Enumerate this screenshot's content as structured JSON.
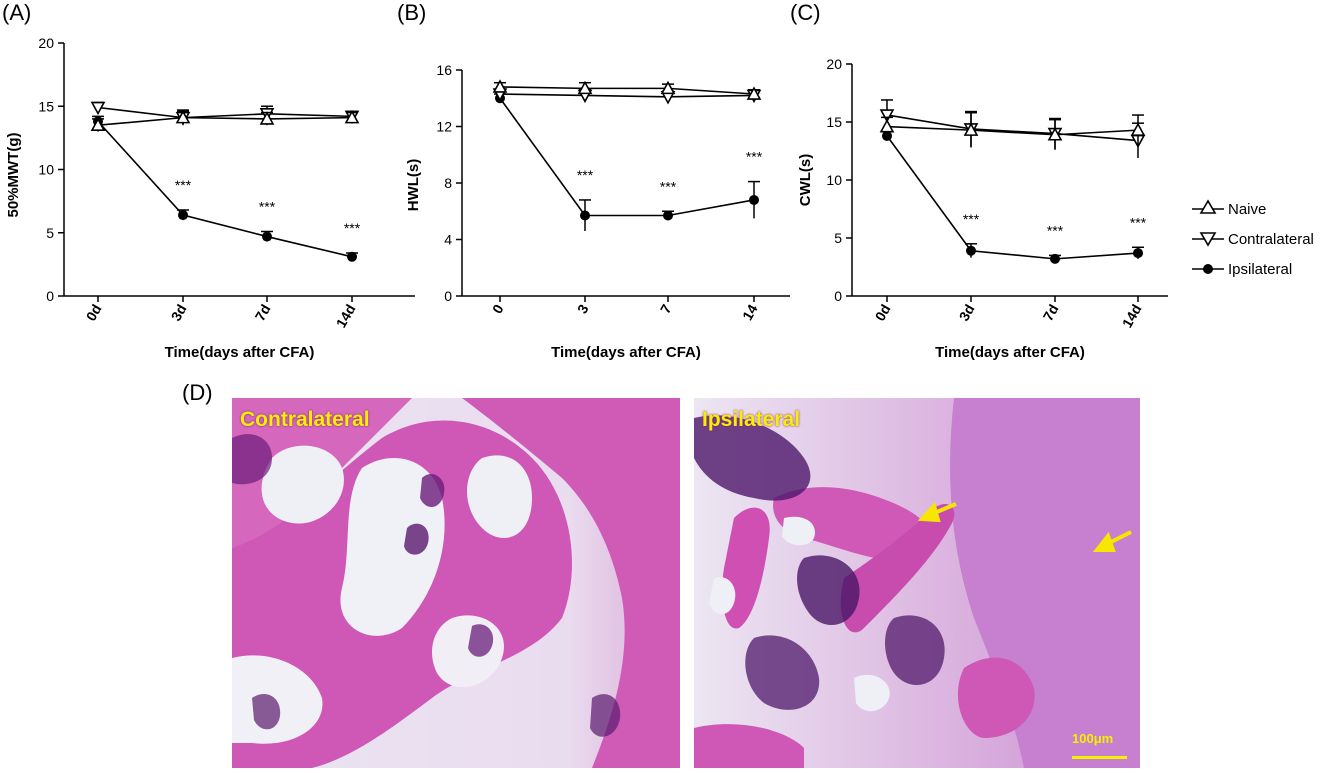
{
  "panels": {
    "a": "(A)",
    "b": "(B)",
    "c": "(C)",
    "d": "(D)"
  },
  "colors": {
    "line": "#000000",
    "tissue_pink": "#d05cb8",
    "tissue_purple": "#5a1a6e",
    "label_yellow": "#f6f000",
    "arrow_yellow": "#f6e600"
  },
  "legend": [
    {
      "label": "Naive",
      "marker": "triangle-up-open"
    },
    {
      "label": "Contralateral",
      "marker": "triangle-down-open"
    },
    {
      "label": "Ipsilateral",
      "marker": "circle-filled"
    }
  ],
  "chart_data": [
    {
      "type": "line",
      "panel": "(A)",
      "xlabel": "Time(days after CFA)",
      "ylabel": "50%MWT(g)",
      "categories": [
        "0d",
        "3d",
        "7d",
        "14d"
      ],
      "ylim": [
        0,
        20
      ],
      "yticks": [
        0,
        5,
        10,
        15,
        20
      ],
      "significance": [
        "",
        "***",
        "***",
        "***"
      ],
      "series": [
        {
          "name": "Naive",
          "values": [
            13.5,
            14.1,
            14.0,
            14.1
          ],
          "errors": [
            0.5,
            0.5,
            0.5,
            0.4
          ]
        },
        {
          "name": "Contralateral",
          "values": [
            14.9,
            14.1,
            14.4,
            14.2
          ],
          "errors": [
            0.4,
            0.6,
            0.6,
            0.4
          ]
        },
        {
          "name": "Ipsilateral",
          "values": [
            13.8,
            6.4,
            4.7,
            3.1
          ],
          "errors": [
            0.4,
            0.4,
            0.4,
            0.3
          ]
        }
      ]
    },
    {
      "type": "line",
      "panel": "(B)",
      "xlabel": "Time(days after CFA)",
      "ylabel": "HWL(s)",
      "categories": [
        "0",
        "3",
        "7",
        "14"
      ],
      "ylim": [
        0,
        16
      ],
      "yticks": [
        0,
        4,
        8,
        12,
        16
      ],
      "significance": [
        "",
        "***",
        "***",
        "***"
      ],
      "series": [
        {
          "name": "Naive",
          "values": [
            14.8,
            14.7,
            14.7,
            14.3
          ],
          "errors": [
            0.3,
            0.4,
            0.3,
            0.3
          ]
        },
        {
          "name": "Contralateral",
          "values": [
            14.3,
            14.2,
            14.1,
            14.2
          ],
          "errors": [
            0.3,
            0.4,
            0.4,
            0.3
          ]
        },
        {
          "name": "Ipsilateral",
          "values": [
            14.0,
            5.7,
            5.7,
            6.8
          ],
          "errors": [
            0.3,
            1.1,
            0.3,
            1.3
          ]
        }
      ]
    },
    {
      "type": "line",
      "panel": "(C)",
      "xlabel": "Time(days after CFA)",
      "ylabel": "CWL(s)",
      "categories": [
        "0d",
        "3d",
        "7d",
        "14d"
      ],
      "ylim": [
        0,
        20
      ],
      "yticks": [
        0,
        5,
        10,
        15,
        20
      ],
      "significance": [
        "",
        "***",
        "***",
        "***"
      ],
      "series": [
        {
          "name": "Naive",
          "values": [
            14.6,
            14.3,
            13.9,
            14.3
          ],
          "errors": [
            0.8,
            1.5,
            1.3,
            1.3
          ]
        },
        {
          "name": "Contralateral",
          "values": [
            15.6,
            14.4,
            14.0,
            13.4
          ],
          "errors": [
            1.3,
            1.5,
            1.3,
            1.5
          ]
        },
        {
          "name": "Ipsilateral",
          "values": [
            13.8,
            3.9,
            3.2,
            3.7
          ],
          "errors": [
            0.4,
            0.6,
            0.3,
            0.5
          ]
        }
      ]
    }
  ],
  "histology": {
    "left_label": "Contralateral",
    "right_label": "Ipsilateral",
    "scale_bar": "100μm"
  }
}
